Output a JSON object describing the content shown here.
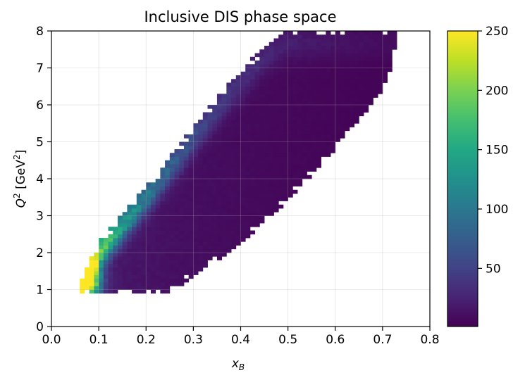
{
  "chart_data": {
    "type": "heatmap",
    "title": "Inclusive DIS phase space",
    "xlabel_main": "x",
    "xlabel_sub": "B",
    "ylabel_main": "Q",
    "ylabel_sup": "2",
    "ylabel_unit_open": " [GeV",
    "ylabel_unit_sup": "2",
    "ylabel_unit_close": "]",
    "xlim": [
      0.0,
      0.8
    ],
    "ylim": [
      0,
      8
    ],
    "xticks": [
      0.0,
      0.1,
      0.2,
      0.3,
      0.4,
      0.5,
      0.6,
      0.7,
      0.8
    ],
    "xtick_labels": [
      "0.0",
      "0.1",
      "0.2",
      "0.3",
      "0.4",
      "0.5",
      "0.6",
      "0.7",
      "0.8"
    ],
    "yticks": [
      0,
      1,
      2,
      3,
      4,
      5,
      6,
      7,
      8
    ],
    "ytick_labels": [
      "0",
      "1",
      "2",
      "3",
      "4",
      "5",
      "6",
      "7",
      "8"
    ],
    "grid": true,
    "colormap": "viridis",
    "colorbar": {
      "range": [
        1,
        250
      ],
      "ticks": [
        50,
        100,
        150,
        200,
        250
      ],
      "tick_labels": [
        "50",
        "100",
        "150",
        "200",
        "250"
      ]
    },
    "x_bin_width": 0.01,
    "y_bin_width": 0.1,
    "region_bounds": {
      "description": "Filled region per x bin: Q2 from q2_low to q2_high",
      "x": [
        0.06,
        0.07,
        0.08,
        0.09,
        0.1,
        0.12,
        0.14,
        0.16,
        0.18,
        0.2,
        0.22,
        0.25,
        0.27,
        0.3,
        0.35,
        0.4,
        0.45,
        0.5,
        0.55,
        0.6,
        0.65,
        0.7,
        0.72,
        0.73
      ],
      "q2_low": [
        0.9,
        0.9,
        0.9,
        0.9,
        0.9,
        0.9,
        0.9,
        0.9,
        0.9,
        0.9,
        0.9,
        0.9,
        1.1,
        1.3,
        1.8,
        2.2,
        2.8,
        3.4,
        4.1,
        4.8,
        5.6,
        6.4,
        7.0,
        8.0
      ],
      "q2_high": [
        1.2,
        1.5,
        1.8,
        2.0,
        2.3,
        2.6,
        2.9,
        3.2,
        3.5,
        3.8,
        4.1,
        4.6,
        4.9,
        5.4,
        6.2,
        6.9,
        7.6,
        8.0,
        8.0,
        8.0,
        8.0,
        8.0,
        8.0,
        8.0
      ]
    },
    "peak": {
      "x": 0.075,
      "q2": 1.25,
      "count": 250
    }
  }
}
